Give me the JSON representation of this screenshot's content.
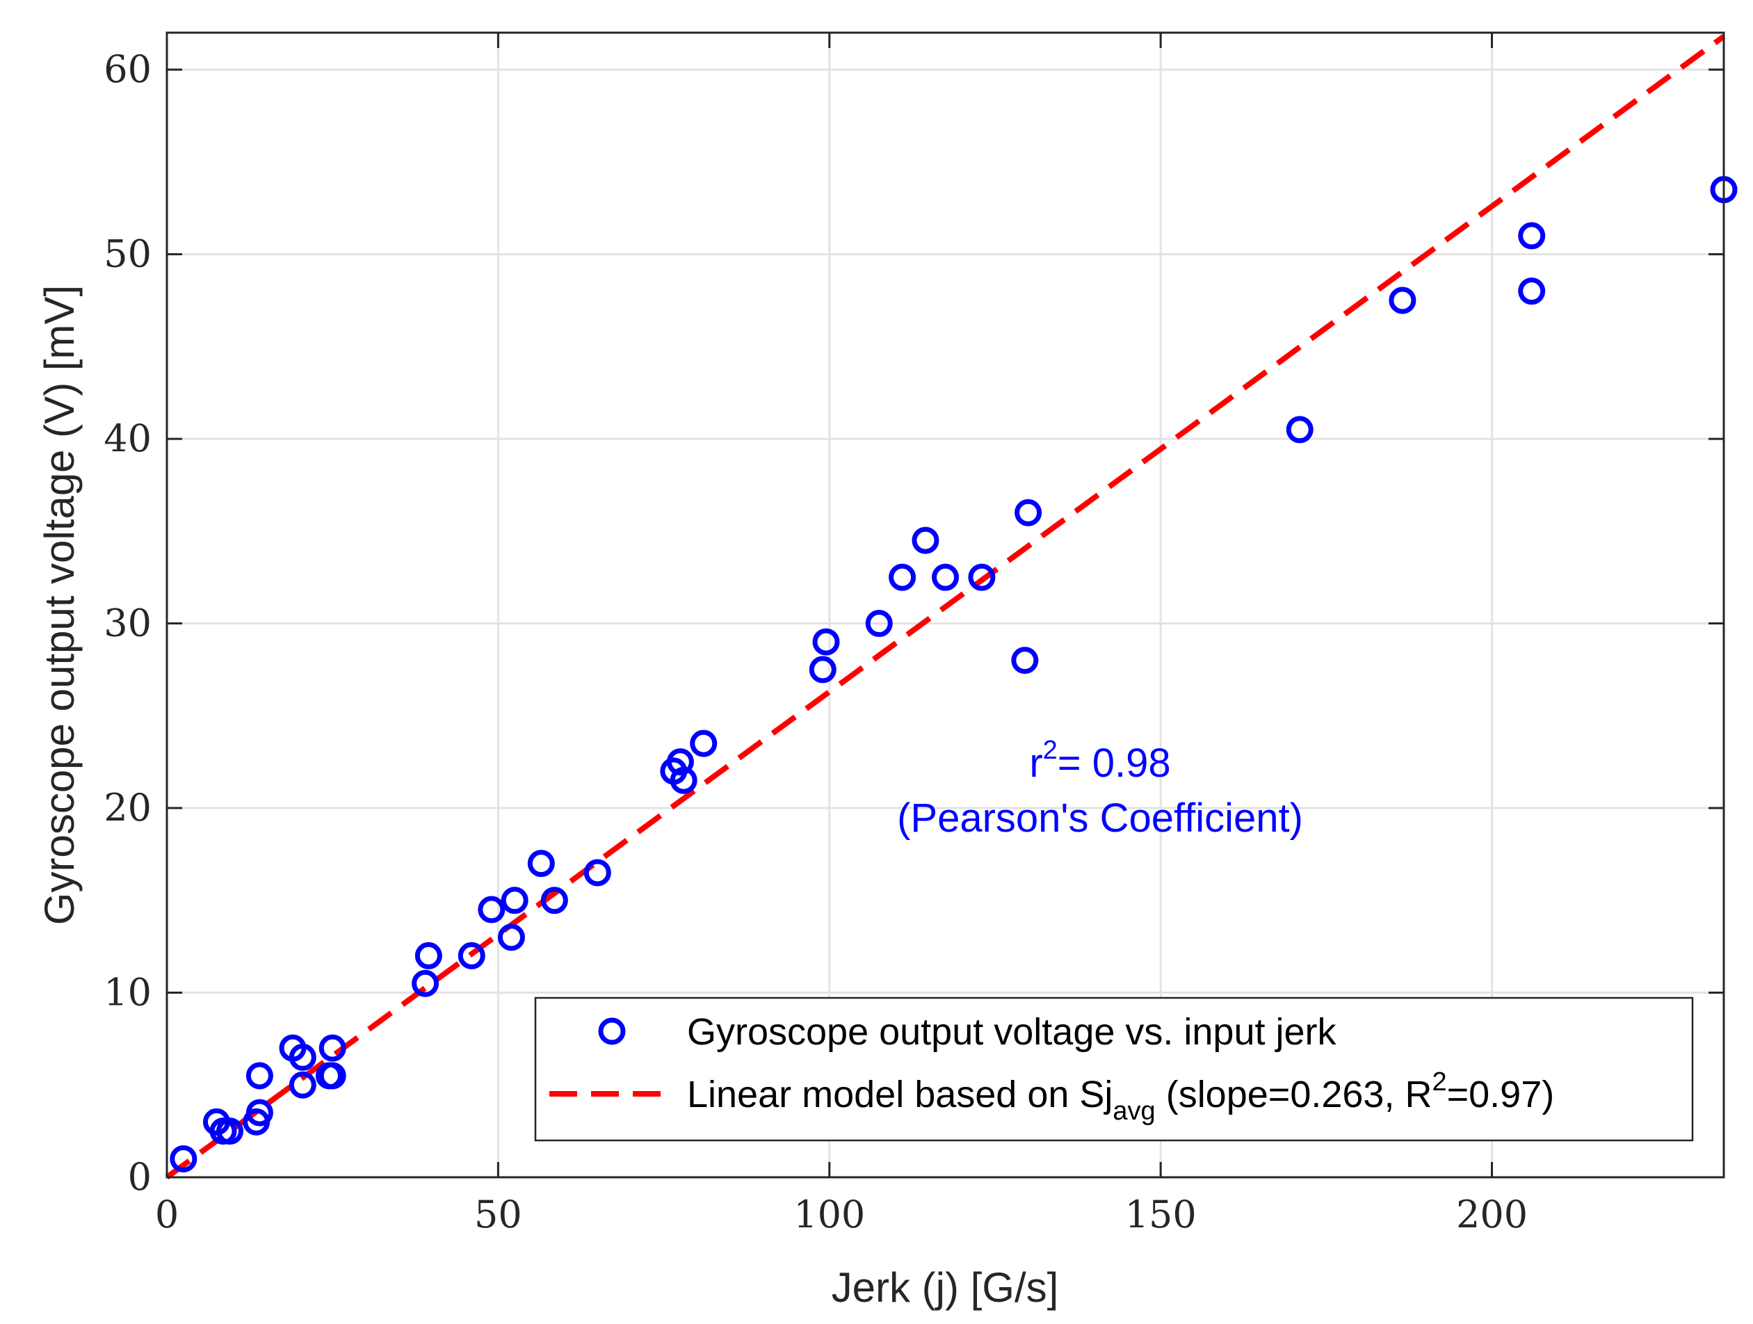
{
  "chart_data": {
    "type": "scatter",
    "xlabel": "Jerk (j) [G/s]",
    "ylabel": "Gyroscope output voltage (V) [mV]",
    "xlim": [
      0,
      235
    ],
    "ylim": [
      0,
      62
    ],
    "x_ticks": [
      0,
      50,
      100,
      150,
      200
    ],
    "y_ticks": [
      0,
      10,
      20,
      30,
      40,
      50,
      60
    ],
    "grid": true,
    "series": [
      {
        "name": "Gyroscope output voltage vs. input jerk",
        "kind": "scatter",
        "marker": "circle",
        "color": "#0000ff",
        "x": [
          2.5,
          7.5,
          8.5,
          9.5,
          13.5,
          14,
          14,
          19,
          20.5,
          20.5,
          24.5,
          25,
          25,
          39,
          39.5,
          46,
          49,
          52,
          52.5,
          56.5,
          58.5,
          65,
          76.5,
          77.5,
          78,
          81,
          99,
          99.5,
          107.5,
          111,
          114.5,
          117.5,
          123,
          129.5,
          130,
          171,
          186.5,
          206,
          206,
          235
        ],
        "y": [
          1,
          3,
          2.5,
          2.5,
          3,
          3.5,
          5.5,
          7,
          6.5,
          5,
          5.5,
          5.5,
          7,
          10.5,
          12,
          12,
          14.5,
          13,
          15,
          17,
          15,
          16.5,
          22,
          22.5,
          21.5,
          23.5,
          27.5,
          29,
          30,
          32.5,
          34.5,
          32.5,
          32.5,
          28,
          36,
          40.5,
          47.5,
          48,
          51,
          53.5
        ]
      },
      {
        "name": "Linear model based on Sj_avg (slope=0.263, R^2=0.97)",
        "kind": "line",
        "style": "dashed",
        "color": "#ff0000",
        "slope": 0.263,
        "x": [
          0,
          235
        ],
        "y": [
          0,
          61.8
        ]
      }
    ],
    "annotation": {
      "r_base": "r",
      "r_sup": "2",
      "r_value": "= 0.98",
      "line2": "(Pearson's Coefficient)"
    },
    "legend": {
      "position": "bottom-right",
      "entry1": "Gyroscope output voltage vs. input jerk",
      "entry2_pre": "Linear model based on S",
      "entry2_j": "j",
      "entry2_sub": "avg",
      "entry2_mid": " (slope=0.263, R",
      "entry2_sup": "2",
      "entry2_post": "=0.97)"
    }
  }
}
